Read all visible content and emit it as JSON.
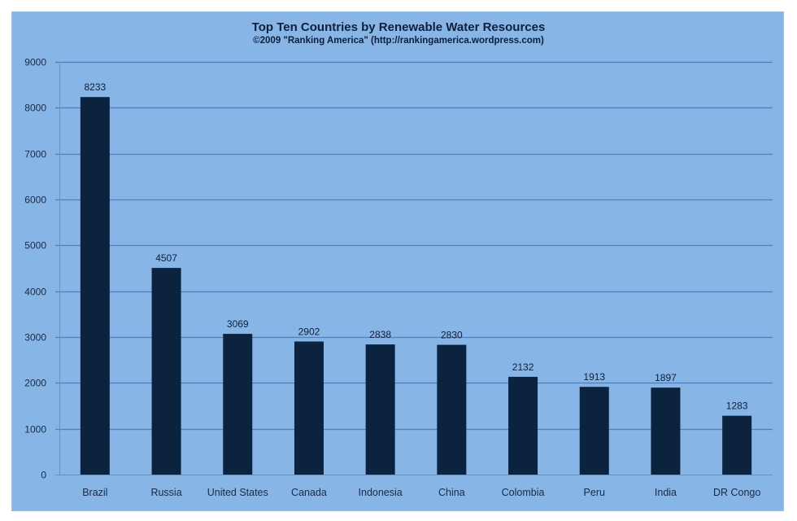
{
  "chart_data": {
    "type": "bar",
    "title": "Top Ten Countries by Renewable Water Resources",
    "subtitle": "©2009 \"Ranking America\" (http://rankingamerica.wordpress.com)",
    "xlabel": "",
    "ylabel": "",
    "categories": [
      "Brazil",
      "Russia",
      "United States",
      "Canada",
      "Indonesia",
      "China",
      "Colombia",
      "Peru",
      "India",
      "DR Congo"
    ],
    "values": [
      8233,
      4507,
      3069,
      2902,
      2838,
      2830,
      2132,
      1913,
      1897,
      1283
    ],
    "data_labels": [
      "8233",
      "4507",
      "3069",
      "2902",
      "2838",
      "2830",
      "2132",
      "1913",
      "1897",
      "1283"
    ],
    "ylim": [
      0,
      9000
    ],
    "yticks": [
      0,
      1000,
      2000,
      3000,
      4000,
      5000,
      6000,
      7000,
      8000,
      9000
    ],
    "ytick_labels": [
      "0",
      "1000",
      "2000",
      "3000",
      "4000",
      "5000",
      "6000",
      "7000",
      "8000",
      "9000"
    ],
    "grid": true,
    "legend": "none",
    "colors": {
      "bar": "#0c2340",
      "background": "#86b5e6",
      "gridline": "#4f7fb8"
    }
  }
}
